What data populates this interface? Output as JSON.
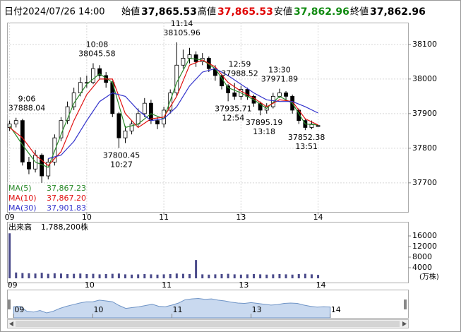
{
  "header": {
    "date_label": "日付",
    "date": "2024/07/26 14:00",
    "open_label": "始値",
    "open": "37,865.53",
    "high_label": "高値",
    "high": "37,865.53",
    "low_label": "安値",
    "low": "37,862.96",
    "close_label": "終値",
    "close": "37,862.96"
  },
  "chart_data": [
    {
      "type": "candlestick",
      "x": [
        0,
        5,
        10,
        15,
        20,
        25,
        30,
        35,
        40,
        45,
        50,
        55,
        60,
        65,
        70,
        75,
        80,
        85,
        90,
        95,
        100,
        105,
        110,
        115,
        120,
        125,
        130,
        135,
        140,
        145,
        150,
        155,
        160,
        165,
        170,
        175,
        180,
        185,
        190,
        195,
        200,
        205,
        210,
        215,
        220,
        225,
        230,
        235,
        240
      ],
      "open": [
        37860,
        37870,
        37880,
        37760,
        37740,
        37780,
        37720,
        37760,
        37830,
        37880,
        37920,
        37960,
        37990,
        37990,
        38030,
        38010,
        37990,
        37900,
        37830,
        37850,
        37870,
        37900,
        37930,
        37880,
        37870,
        37910,
        37960,
        38040,
        38060,
        38070,
        38050,
        38060,
        38030,
        38010,
        37980,
        37960,
        37950,
        37970,
        37950,
        37930,
        37910,
        37920,
        37950,
        37960,
        37950,
        37910,
        37880,
        37860,
        37865.53
      ],
      "high": [
        37880,
        37888.04,
        37885,
        37775,
        37795,
        37785,
        37770,
        37840,
        37890,
        37935,
        37975,
        38005,
        38010,
        38045.58,
        38040,
        38020,
        37995,
        37905,
        37865,
        37880,
        37915,
        37945,
        37940,
        37890,
        37920,
        37970,
        38105.96,
        38085,
        38090,
        38080,
        38075,
        38065,
        38040,
        38015,
        37985,
        37988.52,
        37980,
        37975,
        37955,
        37935,
        37930,
        37960,
        37971.89,
        37965,
        37955,
        37915,
        37885,
        37880,
        37865.53
      ],
      "low": [
        37850,
        37860,
        37750,
        37725,
        37730,
        37700,
        37710,
        37750,
        37820,
        37870,
        37910,
        37950,
        37975,
        37985,
        38000,
        37975,
        37890,
        37800.45,
        37815,
        37840,
        37860,
        37890,
        37870,
        37855,
        37860,
        37900,
        37950,
        38030,
        38045,
        38035,
        38040,
        38020,
        37995,
        37970,
        37935.71,
        37940,
        37940,
        37940,
        37920,
        37895.19,
        37900,
        37915,
        37945,
        37940,
        37900,
        37870,
        37852.38,
        37855,
        37862.96
      ],
      "close": [
        37870,
        37880,
        37760,
        37740,
        37780,
        37720,
        37760,
        37830,
        37880,
        37920,
        37960,
        37990,
        37990,
        38030,
        38010,
        37990,
        37900,
        37830,
        37850,
        37870,
        37900,
        37930,
        37880,
        37870,
        37910,
        37960,
        38040,
        38060,
        38070,
        38050,
        38060,
        38030,
        38010,
        37980,
        37960,
        37950,
        37970,
        37950,
        37930,
        37910,
        37920,
        37950,
        37960,
        37950,
        37910,
        37880,
        37860,
        37870,
        37862.96
      ],
      "up_color": "#ffffff",
      "down_color": "#000000",
      "xlim": [
        -2,
        310
      ],
      "ylim": [
        37616,
        38163
      ],
      "yticks": [
        37700,
        37800,
        37900,
        38000,
        38100
      ],
      "xticks": [
        {
          "value": 0,
          "label": "09"
        },
        {
          "value": 60,
          "label": "10"
        },
        {
          "value": 120,
          "label": "11"
        },
        {
          "value": 180,
          "label": "13"
        },
        {
          "value": 240,
          "label": "14"
        }
      ],
      "grid": true,
      "annotations": [
        {
          "time": "9:06",
          "value": 37888.04,
          "x": 6,
          "position": "above"
        },
        {
          "time": "10:08",
          "value": 38045.58,
          "x": 68,
          "position": "above"
        },
        {
          "time": "11:14",
          "value": 38105.96,
          "x": 134,
          "position": "above"
        },
        {
          "time": "10:27",
          "value": 37800.45,
          "x": 87,
          "position": "below"
        },
        {
          "time": "12:59",
          "value": 37988.52,
          "x": 179,
          "position": "above"
        },
        {
          "time": "12:54",
          "value": 37935.71,
          "x": 174,
          "position": "below"
        },
        {
          "time": "13:30",
          "value": 37971.89,
          "x": 210,
          "position": "above"
        },
        {
          "time": "13:18",
          "value": 37895.19,
          "x": 198,
          "position": "below"
        },
        {
          "time": "13:51",
          "value": 37852.38,
          "x": 231,
          "position": "below"
        }
      ],
      "series": [
        {
          "name": "MA(5)",
          "color": "#2a8a2a",
          "value_label": "37,867.23",
          "x": [
            0,
            10,
            20,
            30,
            40,
            50,
            60,
            70,
            80,
            90,
            100,
            110,
            120,
            130,
            140,
            150,
            160,
            170,
            180,
            190,
            200,
            210,
            220,
            230,
            240
          ],
          "values": [
            37865,
            37810,
            37760,
            37745,
            37840,
            37930,
            37985,
            38015,
            37990,
            37860,
            37870,
            37900,
            37885,
            37990,
            38060,
            38055,
            38030,
            37975,
            37960,
            37940,
            37915,
            37950,
            37930,
            37870,
            37867.23
          ]
        },
        {
          "name": "MA(10)",
          "color": "#e01010",
          "value_label": "37,867.20",
          "x": [
            0,
            10,
            20,
            30,
            40,
            50,
            60,
            70,
            80,
            90,
            100,
            110,
            120,
            130,
            140,
            150,
            160,
            170,
            180,
            190,
            200,
            210,
            220,
            230,
            240
          ],
          "values": [
            37860,
            37830,
            37780,
            37750,
            37790,
            37880,
            37955,
            38000,
            38000,
            37900,
            37860,
            37885,
            37890,
            37950,
            38040,
            38055,
            38035,
            37990,
            37965,
            37945,
            37920,
            37940,
            37935,
            37885,
            37867.2
          ]
        },
        {
          "name": "MA(30)",
          "color": "#3333cc",
          "value_label": "37,901.83",
          "x": [
            0,
            10,
            20,
            30,
            40,
            50,
            60,
            70,
            80,
            90,
            100,
            110,
            120,
            130,
            140,
            150,
            160,
            170,
            180,
            190,
            200,
            210,
            220,
            230,
            240
          ],
          "values": [
            null,
            null,
            null,
            37770,
            37780,
            37820,
            37880,
            37935,
            37960,
            37950,
            37910,
            37880,
            37885,
            37920,
            37980,
            38020,
            38030,
            38010,
            37985,
            37960,
            37940,
            37935,
            37935,
            37920,
            37901.83
          ]
        }
      ],
      "navigator": {
        "xlim": [
          -5,
          299
        ],
        "ylim": [
          37600,
          38250
        ]
      }
    },
    {
      "type": "bar",
      "title": "出来高",
      "subtitle": "1,788,200株",
      "unit": "(万株)",
      "color": "#4a4a8a",
      "x": [
        0,
        5,
        10,
        15,
        20,
        25,
        30,
        35,
        40,
        45,
        50,
        55,
        60,
        65,
        70,
        75,
        80,
        85,
        90,
        95,
        100,
        105,
        110,
        115,
        120,
        125,
        130,
        135,
        140,
        145,
        150,
        155,
        160,
        165,
        170,
        175,
        180,
        185,
        190,
        195,
        200,
        205,
        210,
        215,
        220,
        225,
        230,
        235,
        240
      ],
      "values": [
        17000,
        2200,
        2000,
        1900,
        1800,
        2100,
        1700,
        1900,
        1800,
        1600,
        1700,
        1800,
        1600,
        1700,
        1500,
        1600,
        1700,
        1800,
        1500,
        1400,
        1500,
        1600,
        1500,
        1400,
        1500,
        1600,
        1800,
        1700,
        1600,
        6900,
        1500,
        1400,
        1500,
        1600,
        1700,
        1500,
        1400,
        1500,
        1600,
        1500,
        1400,
        1500,
        1600,
        1500,
        1400,
        1600,
        1700,
        1500,
        1300
      ],
      "xlim": [
        -2,
        310
      ],
      "ylim": [
        0,
        20000
      ],
      "yticks": [
        4000,
        8000,
        12000,
        16000
      ],
      "xticks": [
        {
          "value": 0,
          "label": "09"
        },
        {
          "value": 60,
          "label": "10"
        },
        {
          "value": 120,
          "label": "11"
        },
        {
          "value": 180,
          "label": "13"
        },
        {
          "value": 240,
          "label": "14"
        }
      ]
    }
  ]
}
